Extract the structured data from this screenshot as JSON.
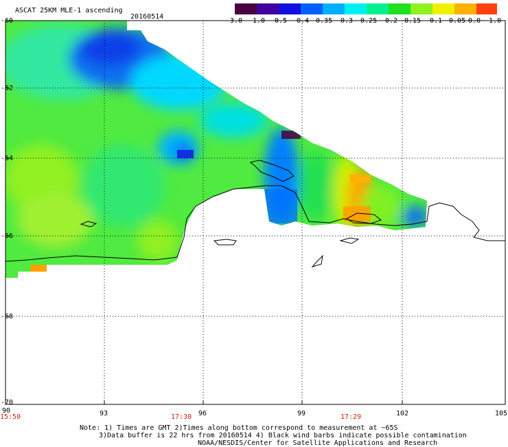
{
  "header": {
    "product": "ASCAT 25KM MLE-1 ascending",
    "date": "20160514"
  },
  "colorbar": {
    "labels": [
      "-3.0",
      "-1.0",
      "-0.5",
      "-0.4",
      "-0.35",
      "-0.3",
      "-0.25",
      "-0.2",
      "-0.15",
      "-0.1",
      "-0.05",
      "0.0",
      "1.0"
    ],
    "colors": [
      "#4a0040",
      "#4000a0",
      "#1010e0",
      "#0060ff",
      "#00b0ff",
      "#00f0f0",
      "#00f090",
      "#20e020",
      "#90f020",
      "#f0f000",
      "#ffb000",
      "#ff4010"
    ]
  },
  "axes": {
    "lon_ticks": [
      "90",
      "93",
      "96",
      "99",
      "102",
      "105"
    ],
    "lat_ticks": [
      "-60",
      "-62",
      "-64",
      "-66",
      "-68",
      "-70"
    ],
    "time_labels": [
      "15:50",
      "17:30",
      "17:29"
    ]
  },
  "notes": [
    "Note: 1) Times are GMT 2)Times along bottom correspond to measurement at ~65S",
    "3)Data buffer is 22 hrs from 20160514 4) Black wind barbs indicate possible contamination",
    "NOAA/NESDIS/Center for Satellite Applications and Research"
  ]
}
